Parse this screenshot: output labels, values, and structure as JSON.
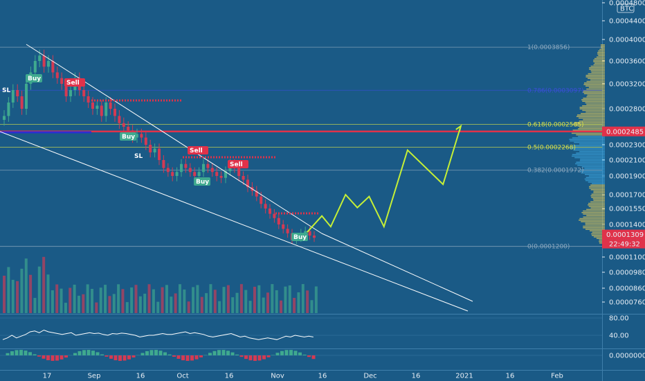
{
  "colors": {
    "background": "#1a5a86",
    "panel_border": "#3f7fab",
    "grid": "#2a6a96",
    "axis_text": "#e8eef5",
    "up_candle": "#3fa98f",
    "down_candle": "#d43a53",
    "resistance_red": "#e0324a",
    "support_blue": "#2b2fd0",
    "forecast_line": "#c6f036",
    "wedge_line": "#ffffff",
    "volume_profile": "#d6c25a",
    "volume_profile_alt": "#3aa0d8",
    "fib_yellow": "#d8e04a",
    "fib_blue": "#3a4ed8",
    "fib_gray": "#8faac0"
  },
  "chart_data": [
    {
      "type": "candlestick",
      "name": "price",
      "quote_currency": "BTC",
      "y_ticks": [
        "0.0004800",
        "0.0004400",
        "0.0004000",
        "0.0003600",
        "0.0003200",
        "0.0002800",
        "0.0002300",
        "0.0002100",
        "0.0001900",
        "0.0001700",
        "0.0001550",
        "0.0001400",
        "0.0001250",
        "0.0001100",
        "0.0000980",
        "0.0000860",
        "0.0000760"
      ],
      "x_ticks": [
        "17",
        "Sep",
        "16",
        "Oct",
        "16",
        "Nov",
        "16",
        "Dec",
        "16",
        "2021",
        "16",
        "Feb"
      ],
      "current_price_label": "0.0001309",
      "countdown_label": "22:49:32",
      "marked_level_label": "0.0002485",
      "fib_levels": [
        {
          "label": "1(0.0003856)",
          "value": 0.0003856,
          "color": "#8faac0"
        },
        {
          "label": "0.786(0.0003097)",
          "value": 0.0003097,
          "color": "#3a4ed8"
        },
        {
          "label": "0.618(0.0002585)",
          "value": 0.0002585,
          "color": "#d8e04a"
        },
        {
          "label": "0.5(0.0002268)",
          "value": 0.0002268,
          "color": "#d8e04a"
        },
        {
          "label": "0.382(0.0001972)",
          "value": 0.0001972,
          "color": "#8faac0"
        },
        {
          "label": "0(0.0001200)",
          "value": 0.00012,
          "color": "#8faac0"
        }
      ],
      "signals": [
        {
          "label": "Buy",
          "kind": "buy"
        },
        {
          "label": "Sell",
          "kind": "sell"
        },
        {
          "label": "Buy",
          "kind": "buy"
        },
        {
          "label": "SL",
          "kind": "sl"
        },
        {
          "label": "SL",
          "kind": "sl"
        },
        {
          "label": "Sell",
          "kind": "sell"
        },
        {
          "label": "Sell",
          "kind": "sell"
        },
        {
          "label": "Buy",
          "kind": "buy"
        },
        {
          "label": "Buy",
          "kind": "buy"
        }
      ],
      "forecast_path": [
        {
          "date": "2020-11-13",
          "price": 0.000133
        },
        {
          "date": "2020-11-18",
          "price": 0.000148
        },
        {
          "date": "2020-11-21",
          "price": 0.000138
        },
        {
          "date": "2020-11-26",
          "price": 0.00017
        },
        {
          "date": "2020-11-30",
          "price": 0.000156
        },
        {
          "date": "2020-12-04",
          "price": 0.000168
        },
        {
          "date": "2020-12-09",
          "price": 0.000138
        },
        {
          "date": "2020-12-17",
          "price": 0.000223
        },
        {
          "date": "2020-12-29",
          "price": 0.000181
        },
        {
          "date": "2021-01-04",
          "price": 0.000256
        }
      ]
    },
    {
      "type": "line",
      "name": "oscillator",
      "y_ticks": [
        "80.00",
        "40.00"
      ],
      "values": [
        30,
        34,
        40,
        34,
        38,
        42,
        48,
        50,
        46,
        52,
        48,
        46,
        44,
        42,
        44,
        46,
        40,
        42,
        44,
        46,
        44,
        45,
        42,
        40,
        44,
        43,
        45,
        44,
        42,
        40,
        36,
        38,
        40,
        40,
        42,
        44,
        42,
        42,
        44,
        46,
        48,
        44,
        46,
        44,
        42,
        38,
        36,
        38,
        40,
        42,
        44,
        40,
        36,
        38,
        34,
        32,
        30,
        32,
        34,
        32,
        30,
        34,
        38,
        36,
        40,
        38,
        36,
        38,
        36
      ]
    },
    {
      "type": "bar",
      "name": "histogram",
      "y_ticks": [
        "0.0000000"
      ]
    }
  ]
}
